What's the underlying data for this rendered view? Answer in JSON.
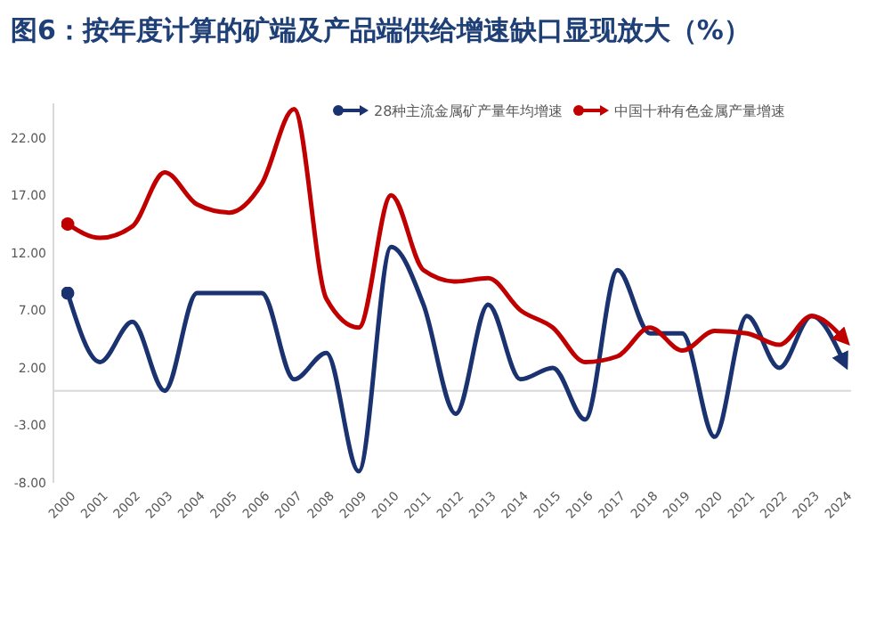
{
  "chart_data": {
    "type": "line",
    "title": "图6：按年度计算的矿端及产品端供给增速缺口显现放大（%）",
    "categories": [
      "2000",
      "2001",
      "2002",
      "2003",
      "2004",
      "2005",
      "2006",
      "2007",
      "2008",
      "2009",
      "2010",
      "2011",
      "2012",
      "2013",
      "2014",
      "2015",
      "2016",
      "2017",
      "2018",
      "2019",
      "2020",
      "2021",
      "2022",
      "2023",
      "2024"
    ],
    "series": [
      {
        "name": "28种主流金属矿产量年均增速",
        "color": "#1a3370",
        "values": [
          8.5,
          2.5,
          6,
          0,
          8.5,
          8.5,
          8.5,
          1,
          3.3,
          -7,
          12.5,
          7.5,
          -2,
          7.5,
          1,
          2,
          -2.5,
          10.5,
          5,
          5,
          -4,
          6.5,
          2,
          6.5,
          2.5
        ]
      },
      {
        "name": "中国十种有色金属产量增速",
        "color": "#c00000",
        "values": [
          14.5,
          13.3,
          14.3,
          19,
          16.2,
          15.5,
          18,
          24.5,
          8,
          5.5,
          17,
          10.5,
          9.5,
          9.8,
          7,
          5.5,
          2.5,
          3,
          5.5,
          3.5,
          5.2,
          5,
          4,
          6.5,
          4.5
        ]
      }
    ],
    "ylim": [
      -8,
      25
    ],
    "yticks": [
      {
        "value": -8,
        "label": "-8.00"
      },
      {
        "value": -3,
        "label": "-3.00"
      },
      {
        "value": 2,
        "label": "2.00"
      },
      {
        "value": 7,
        "label": "7.00"
      },
      {
        "value": 12,
        "label": "12.00"
      },
      {
        "value": 17,
        "label": "17.00"
      },
      {
        "value": 22,
        "label": "22.00"
      }
    ],
    "grid": false,
    "legend": "top right"
  }
}
